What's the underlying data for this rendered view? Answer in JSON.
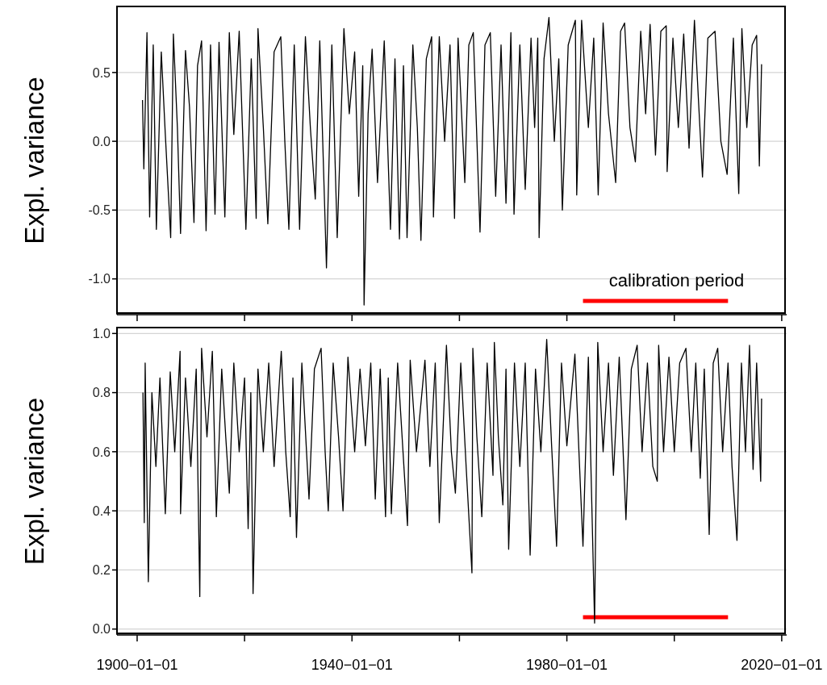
{
  "chart_data": [
    {
      "type": "line",
      "ylabel": "Expl. variance",
      "xlim": [
        "1896-04-01",
        "2020-12-01"
      ],
      "ylim": [
        -1.26,
        0.98
      ],
      "xticks": [
        {
          "value": "1900-01-01",
          "label": null
        },
        {
          "value": "1920-01-01",
          "label": null
        },
        {
          "value": "1940-01-01",
          "label": null
        },
        {
          "value": "1960-01-01",
          "label": null
        },
        {
          "value": "1980-01-01",
          "label": null
        },
        {
          "value": "2000-01-01",
          "label": null
        },
        {
          "value": "2020-01-01",
          "label": null
        }
      ],
      "yticks": [
        {
          "value": -1,
          "label": "-1.0"
        },
        -0.5,
        {
          "value": 0,
          "label": "0.0"
        },
        0.5
      ],
      "tick_labels": "y",
      "grid": "y",
      "series": [
        {
          "type": "line",
          "name": "calibration period",
          "color": "#ff0000",
          "x": [
            "1983-01-01",
            "2010-01-01"
          ],
          "values": [
            -1.16,
            -1.16
          ]
        },
        {
          "color": "#000000",
          "x": [
            "1901-01",
            "1901-04",
            "1901-11",
            "1902-05",
            "1903-01",
            "1903-08",
            "1904-07",
            "1905-04",
            "1906-04",
            "1906-10",
            "1907-07",
            "1908-02",
            "1909-01",
            "1909-10",
            "1910-08",
            "1911-04",
            "1912-01",
            "1912-11",
            "1913-09",
            "1914-07",
            "1915-04",
            "1916-05",
            "1917-03",
            "1918-01",
            "1919-01",
            "1920-04",
            "1921-04",
            "1922-03",
            "1922-07",
            "1923-07",
            "1924-05",
            "1925-07",
            "1926-10",
            "1927-07",
            "1928-04",
            "1929-04",
            "1930-04",
            "1931-05",
            "1932-04",
            "1933-03",
            "1934-01",
            "1935-04",
            "1936-04",
            "1937-04",
            "1938-07",
            "1939-07",
            "1940-07",
            "1941-04",
            "1942-01",
            "1942-04",
            "1943-01",
            "1943-10",
            "1944-10",
            "1946-01",
            "1947-03",
            "1948-01",
            "1948-11",
            "1949-08",
            "1950-04",
            "1951-05",
            "1952-03",
            "1952-11",
            "1953-11",
            "1954-11",
            "1955-03",
            "1956-04",
            "1957-04",
            "1958-04",
            "1959-02",
            "1959-10",
            "1961-01",
            "1961-10",
            "1962-08",
            "1963-11",
            "1964-10",
            "1965-10",
            "1966-10",
            "1967-10",
            "1968-09",
            "1969-08",
            "1970-03",
            "1971-04",
            "1972-04",
            "1973-05",
            "1974-01",
            "1974-08",
            "1974-11",
            "1975-10",
            "1976-09",
            "1977-09",
            "1978-07",
            "1979-03",
            "1980-04",
            "1981-08",
            "1981-11",
            "1982-10",
            "1984-01",
            "1985-01",
            "1985-11",
            "1986-10",
            "1987-10",
            "1989-02",
            "1990-01",
            "1990-10",
            "1991-10",
            "1992-10",
            "1993-10",
            "1994-09",
            "1995-07",
            "1996-07",
            "1997-07",
            "1998-07",
            "1998-09",
            "1999-10",
            "2000-10",
            "2001-10",
            "2002-10",
            "2003-10",
            "2004-07",
            "2005-04",
            "2006-04",
            "2007-08",
            "2008-09",
            "2009-11",
            "2011-01",
            "2012-01",
            "2012-08",
            "2013-07",
            "2014-07",
            "2015-05",
            "2015-11",
            "2016-04"
          ],
          "values": [
            0.3,
            -0.2,
            0.79,
            -0.55,
            0.7,
            -0.64,
            0.65,
            0.05,
            -0.7,
            0.78,
            0.1,
            -0.67,
            0.66,
            0.25,
            -0.59,
            0.55,
            0.73,
            -0.65,
            0.7,
            -0.53,
            0.72,
            -0.55,
            0.79,
            0.05,
            0.8,
            -0.64,
            0.6,
            -0.56,
            0.82,
            0.1,
            -0.6,
            0.65,
            0.76,
            0.0,
            -0.64,
            0.7,
            -0.64,
            0.76,
            0.1,
            -0.42,
            0.73,
            -0.92,
            0.7,
            -0.7,
            0.82,
            0.2,
            0.65,
            -0.4,
            0.55,
            -1.19,
            0.2,
            0.67,
            -0.3,
            0.73,
            -0.64,
            0.6,
            -0.71,
            0.55,
            -0.7,
            0.7,
            0.1,
            -0.72,
            0.6,
            0.76,
            -0.55,
            0.76,
            0.0,
            0.7,
            -0.56,
            0.75,
            -0.3,
            0.7,
            0.79,
            -0.66,
            0.7,
            0.79,
            -0.4,
            0.7,
            -0.45,
            0.79,
            -0.53,
            0.7,
            -0.35,
            0.75,
            0.1,
            0.75,
            -0.7,
            0.6,
            0.9,
            0.0,
            0.6,
            -0.5,
            0.7,
            0.88,
            -0.39,
            0.88,
            0.1,
            0.75,
            -0.39,
            0.86,
            0.2,
            -0.3,
            0.8,
            0.86,
            0.1,
            -0.15,
            0.8,
            0.2,
            0.85,
            -0.1,
            0.8,
            0.84,
            -0.22,
            0.75,
            0.1,
            0.78,
            -0.05,
            0.88,
            0.3,
            -0.26,
            0.75,
            0.8,
            0.0,
            -0.24,
            0.75,
            -0.38,
            0.82,
            0.1,
            0.7,
            0.77,
            -0.18,
            0.56
          ]
        }
      ]
    },
    {
      "type": "line",
      "ylabel": "Expl. variance",
      "xlim": [
        "1896-04-01",
        "2020-12-01"
      ],
      "ylim": [
        -0.02,
        1.02
      ],
      "xticks": [
        {
          "value": "1900-01-01",
          "label": "1900−01−01"
        },
        {
          "value": "1920-01-01",
          "label": null
        },
        {
          "value": "1940-01-01",
          "label": "1940−01−01"
        },
        {
          "value": "1960-01-01",
          "label": null
        },
        {
          "value": "1980-01-01",
          "label": "1980−01−01"
        },
        {
          "value": "2000-01-01",
          "label": null
        },
        {
          "value": "2020-01-01",
          "label": "2020−01−01"
        }
      ],
      "yticks": [
        {
          "value": 0,
          "label": "0.0"
        },
        0.2,
        0.4,
        0.6,
        0.8,
        {
          "value": 1,
          "label": "1.0"
        }
      ],
      "grid": "y",
      "series": [
        {
          "type": "line",
          "color": "#ff0000",
          "x": [
            "1983-01-01",
            "2010-01-01"
          ],
          "values": [
            0.04,
            0.04
          ]
        },
        {
          "color": "#000000",
          "x": [
            "1901-02",
            "1901-05",
            "1901-07",
            "1902-02",
            "1902-10",
            "1903-07",
            "1904-04",
            "1905-04",
            "1906-03",
            "1907-01",
            "1908-01",
            "1908-02",
            "1909-01",
            "1910-01",
            "1911-01",
            "1911-09",
            "1912-01",
            "1913-01",
            "1914-01",
            "1914-10",
            "1915-10",
            "1916-07",
            "1917-03",
            "1918-01",
            "1919-01",
            "1920-01",
            "1920-09",
            "1921-03",
            "1921-08",
            "1922-07",
            "1923-07",
            "1924-07",
            "1925-07",
            "1926-11",
            "1927-09",
            "1928-07",
            "1929-01",
            "1929-09",
            "1930-09",
            "1932-01",
            "1933-01",
            "1934-04",
            "1935-01",
            "1935-08",
            "1936-07",
            "1937-07",
            "1938-05",
            "1939-04",
            "1940-07",
            "1941-07",
            "1942-07",
            "1943-07",
            "1944-05",
            "1945-04",
            "1946-04",
            "1946-10",
            "1947-05",
            "1948-07",
            "1949-07",
            "1950-05",
            "1950-11",
            "1952-01",
            "1953-08",
            "1954-07",
            "1955-07",
            "1956-04",
            "1957-08",
            "1958-07",
            "1959-04",
            "1960-04",
            "1961-04",
            "1962-05",
            "1962-07",
            "1963-04",
            "1964-03",
            "1965-03",
            "1966-04",
            "1966-07",
            "1967-04",
            "1968-02",
            "1968-09",
            "1969-03",
            "1970-04",
            "1971-04",
            "1972-04",
            "1973-03",
            "1974-03",
            "1975-03",
            "1976-04",
            "1977-03",
            "1978-02",
            "1979-01",
            "1980-01",
            "1981-07",
            "1982-04",
            "1983-01",
            "1984-01",
            "1985-03",
            "1985-10",
            "1986-10",
            "1987-10",
            "1988-09",
            "1989-10",
            "1991-01",
            "1992-01",
            "1993-02",
            "1994-01",
            "1995-01",
            "1996-01",
            "1996-11",
            "1997-02",
            "1998-01",
            "1999-01",
            "2000-01",
            "2001-01",
            "2002-03",
            "2003-03",
            "2004-01",
            "2004-11",
            "2005-08",
            "2006-07",
            "2007-04",
            "2008-02",
            "2009-01",
            "2010-01",
            "2010-10",
            "2011-09",
            "2012-07",
            "2013-04",
            "2014-01",
            "2014-09",
            "2015-05",
            "2016-02",
            "2016-04"
          ],
          "values": [
            0.8,
            0.36,
            0.9,
            0.16,
            0.8,
            0.55,
            0.85,
            0.39,
            0.87,
            0.6,
            0.94,
            0.39,
            0.85,
            0.55,
            0.88,
            0.11,
            0.95,
            0.65,
            0.94,
            0.38,
            0.88,
            0.65,
            0.46,
            0.9,
            0.6,
            0.85,
            0.34,
            0.8,
            0.12,
            0.88,
            0.6,
            0.9,
            0.55,
            0.94,
            0.6,
            0.38,
            0.85,
            0.31,
            0.9,
            0.44,
            0.88,
            0.95,
            0.6,
            0.4,
            0.9,
            0.65,
            0.4,
            0.92,
            0.6,
            0.88,
            0.62,
            0.9,
            0.44,
            0.88,
            0.38,
            0.85,
            0.39,
            0.9,
            0.6,
            0.35,
            0.91,
            0.6,
            0.91,
            0.55,
            0.9,
            0.36,
            0.96,
            0.6,
            0.46,
            0.9,
            0.55,
            0.19,
            0.95,
            0.65,
            0.38,
            0.9,
            0.52,
            0.97,
            0.65,
            0.42,
            0.88,
            0.27,
            0.9,
            0.55,
            0.9,
            0.25,
            0.88,
            0.6,
            0.98,
            0.62,
            0.28,
            0.9,
            0.62,
            0.93,
            0.6,
            0.28,
            0.92,
            0.02,
            0.97,
            0.6,
            0.9,
            0.52,
            0.92,
            0.37,
            0.88,
            0.96,
            0.6,
            0.9,
            0.55,
            0.5,
            0.96,
            0.6,
            0.92,
            0.6,
            0.9,
            0.95,
            0.6,
            0.9,
            0.51,
            0.88,
            0.32,
            0.9,
            0.95,
            0.6,
            0.9,
            0.55,
            0.3,
            0.9,
            0.6,
            0.96,
            0.54,
            0.9,
            0.5,
            0.78
          ]
        }
      ]
    }
  ]
}
